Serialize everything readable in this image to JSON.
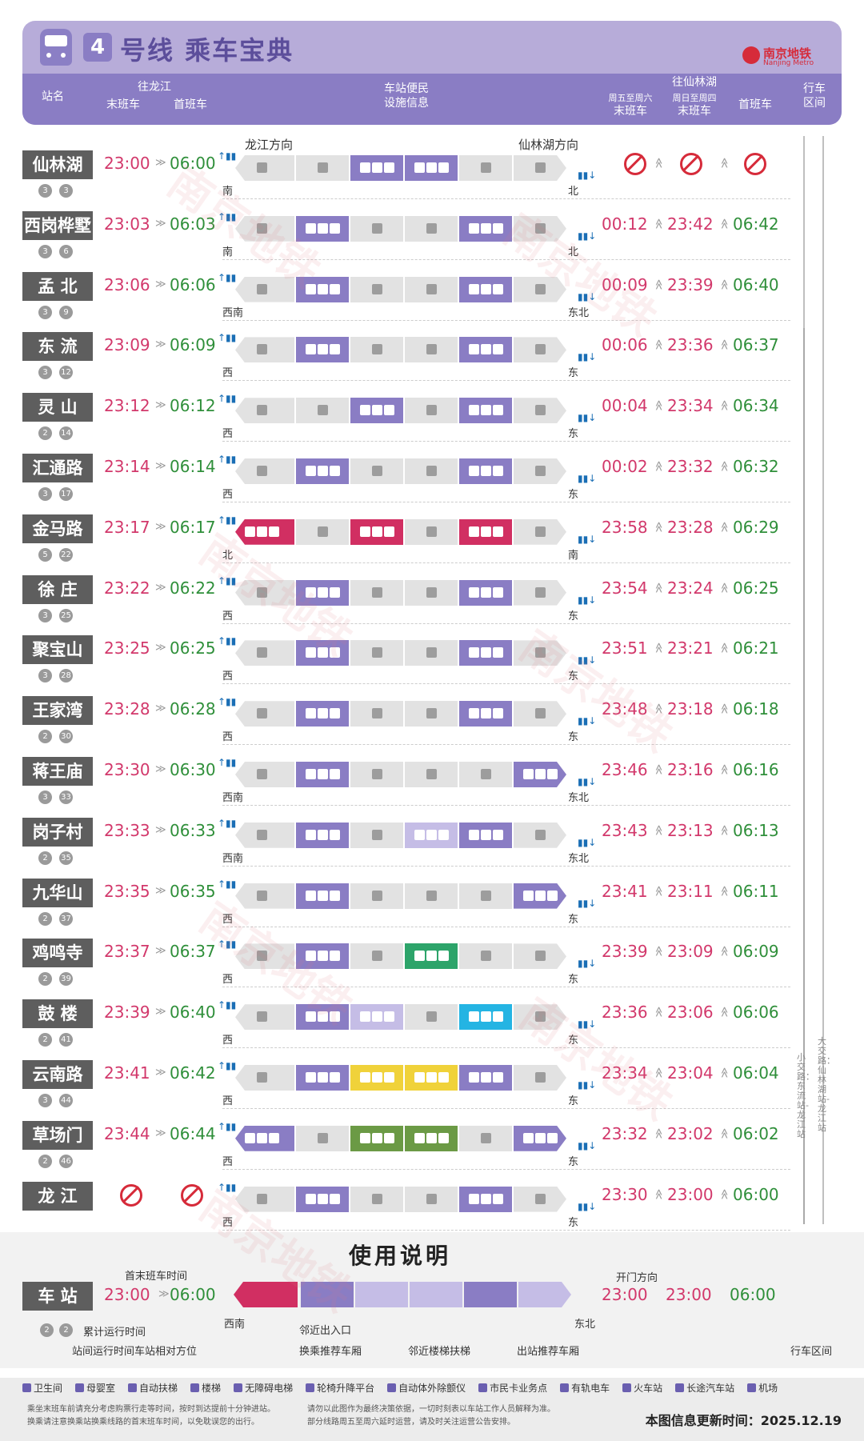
{
  "header": {
    "line_number": "4",
    "title": "号线 乘车宝典",
    "logo_cn": "南京地铁",
    "logo_en": "Nanjing Metro",
    "col_station": "站名",
    "col_to_longjiang": "往龙江",
    "col_last_train": "末班车",
    "col_first_train": "首班车",
    "col_facilities_1": "车站便民",
    "col_facilities_2": "设施信息",
    "col_to_xianlinhu": "往仙林湖",
    "col_weekday_1": "周五至周六",
    "col_weekday_last": "末班车",
    "col_weekend_1": "周日至周四",
    "col_weekend_last": "末班车",
    "col_first_train_b": "首班车",
    "col_interval_1": "行车",
    "col_interval_2": "区间"
  },
  "direction_left": "龙江方向",
  "direction_right": "仙林湖方向",
  "stations": [
    {
      "name": "仙林湖",
      "c1": "3",
      "c2": "3",
      "last_lj": "23:00",
      "first_lj": "06:00",
      "last_a": "",
      "last_b": "",
      "first_b": "",
      "left_dir": "南",
      "right_dir": "北",
      "no_service_right": true
    },
    {
      "name": "西岗桦墅",
      "c1": "3",
      "c2": "6",
      "last_lj": "23:03",
      "first_lj": "06:03",
      "last_a": "00:12",
      "last_b": "23:42",
      "first_b": "06:42",
      "left_dir": "南",
      "right_dir": "北"
    },
    {
      "name": "孟 北",
      "c1": "3",
      "c2": "9",
      "last_lj": "23:06",
      "first_lj": "06:06",
      "last_a": "00:09",
      "last_b": "23:39",
      "first_b": "06:40",
      "left_dir": "西南",
      "right_dir": "东北"
    },
    {
      "name": "东 流",
      "c1": "3",
      "c2": "12",
      "last_lj": "23:09",
      "first_lj": "06:09",
      "last_a": "00:06",
      "last_b": "23:36",
      "first_b": "06:37",
      "left_dir": "西",
      "right_dir": "东"
    },
    {
      "name": "灵 山",
      "c1": "2",
      "c2": "14",
      "last_lj": "23:12",
      "first_lj": "06:12",
      "last_a": "00:04",
      "last_b": "23:34",
      "first_b": "06:34",
      "left_dir": "西",
      "right_dir": "东"
    },
    {
      "name": "汇通路",
      "c1": "3",
      "c2": "17",
      "last_lj": "23:14",
      "first_lj": "06:14",
      "last_a": "00:02",
      "last_b": "23:32",
      "first_b": "06:32",
      "left_dir": "西",
      "right_dir": "东"
    },
    {
      "name": "金马路",
      "c1": "5",
      "c2": "22",
      "last_lj": "23:17",
      "first_lj": "06:17",
      "last_a": "23:58",
      "last_b": "23:28",
      "first_b": "06:29",
      "left_dir": "北",
      "right_dir": "南"
    },
    {
      "name": "徐 庄",
      "c1": "3",
      "c2": "25",
      "last_lj": "23:22",
      "first_lj": "06:22",
      "last_a": "23:54",
      "last_b": "23:24",
      "first_b": "06:25",
      "left_dir": "西",
      "right_dir": "东"
    },
    {
      "name": "聚宝山",
      "c1": "3",
      "c2": "28",
      "last_lj": "23:25",
      "first_lj": "06:25",
      "last_a": "23:51",
      "last_b": "23:21",
      "first_b": "06:21",
      "left_dir": "西",
      "right_dir": "东"
    },
    {
      "name": "王家湾",
      "c1": "2",
      "c2": "30",
      "last_lj": "23:28",
      "first_lj": "06:28",
      "last_a": "23:48",
      "last_b": "23:18",
      "first_b": "06:18",
      "left_dir": "西",
      "right_dir": "东"
    },
    {
      "name": "蒋王庙",
      "c1": "3",
      "c2": "33",
      "last_lj": "23:30",
      "first_lj": "06:30",
      "last_a": "23:46",
      "last_b": "23:16",
      "first_b": "06:16",
      "left_dir": "西南",
      "right_dir": "东北"
    },
    {
      "name": "岗子村",
      "c1": "2",
      "c2": "35",
      "last_lj": "23:33",
      "first_lj": "06:33",
      "last_a": "23:43",
      "last_b": "23:13",
      "first_b": "06:13",
      "left_dir": "西南",
      "right_dir": "东北"
    },
    {
      "name": "九华山",
      "c1": "2",
      "c2": "37",
      "last_lj": "23:35",
      "first_lj": "06:35",
      "last_a": "23:41",
      "last_b": "23:11",
      "first_b": "06:11",
      "left_dir": "西",
      "right_dir": "东"
    },
    {
      "name": "鸡鸣寺",
      "c1": "2",
      "c2": "39",
      "last_lj": "23:37",
      "first_lj": "06:37",
      "last_a": "23:39",
      "last_b": "23:09",
      "first_b": "06:09",
      "left_dir": "西",
      "right_dir": "东"
    },
    {
      "name": "鼓 楼",
      "c1": "2",
      "c2": "41",
      "last_lj": "23:39",
      "first_lj": "06:40",
      "last_a": "23:36",
      "last_b": "23:06",
      "first_b": "06:06",
      "left_dir": "西",
      "right_dir": "东"
    },
    {
      "name": "云南路",
      "c1": "3",
      "c2": "44",
      "last_lj": "23:41",
      "first_lj": "06:42",
      "last_a": "23:34",
      "last_b": "23:04",
      "first_b": "06:04",
      "left_dir": "西",
      "right_dir": "东"
    },
    {
      "name": "草场门",
      "c1": "2",
      "c2": "46",
      "last_lj": "23:44",
      "first_lj": "06:44",
      "last_a": "23:32",
      "last_b": "23:02",
      "first_b": "06:02",
      "left_dir": "西",
      "right_dir": "东"
    },
    {
      "name": "龙 江",
      "c1": "",
      "c2": "",
      "last_lj": "",
      "first_lj": "",
      "last_a": "23:30",
      "last_b": "23:00",
      "first_b": "06:00",
      "left_dir": "西",
      "right_dir": "东",
      "no_service_left": true
    }
  ],
  "interval_small": "小交路：东流站-龙江站",
  "interval_large": "大交路：仙林湖站-龙江站",
  "guide": {
    "title": "使用说明",
    "station": "车 站",
    "first_last_label": "首末班车时间",
    "last": "23:00",
    "first": "06:00",
    "last_a": "23:00",
    "last_b": "23:00",
    "first_b": "06:00",
    "door_label": "开门方向",
    "left_dir": "西南",
    "right_dir": "东北",
    "c1": "2",
    "c2": "2",
    "cumulative": "累计运行时间",
    "interval_time": "站间运行时间车站相对方位",
    "nearby_exit": "邻近出入口",
    "transfer_car": "换乘推荐车厢",
    "escalator": "邻近楼梯扶梯",
    "exit_car": "出站推荐车厢",
    "interval": "行车区间"
  },
  "legend": [
    "卫生间",
    "母婴室",
    "自动扶梯",
    "楼梯",
    "无障碍电梯",
    "轮椅升降平台",
    "自动体外除颤仪",
    "市民卡业务点",
    "有轨电车",
    "火车站",
    "长途汽车站",
    "机场"
  ],
  "notes": [
    "乘坐末班车前请充分考虑购票行走等时间，按时到达提前十分钟进站。",
    "换乘请注意换乘站换乘线路的首末班车时间，以免耽误您的出行。",
    "请勿以此图作为最终决策依据，一切时刻表以车站工作人员解释为准。",
    "部分线路周五至周六延时运营，请及时关注运营公告安排。"
  ],
  "update_text": "本图信息更新时间：2025.12.19",
  "watermark": "南京地铁"
}
